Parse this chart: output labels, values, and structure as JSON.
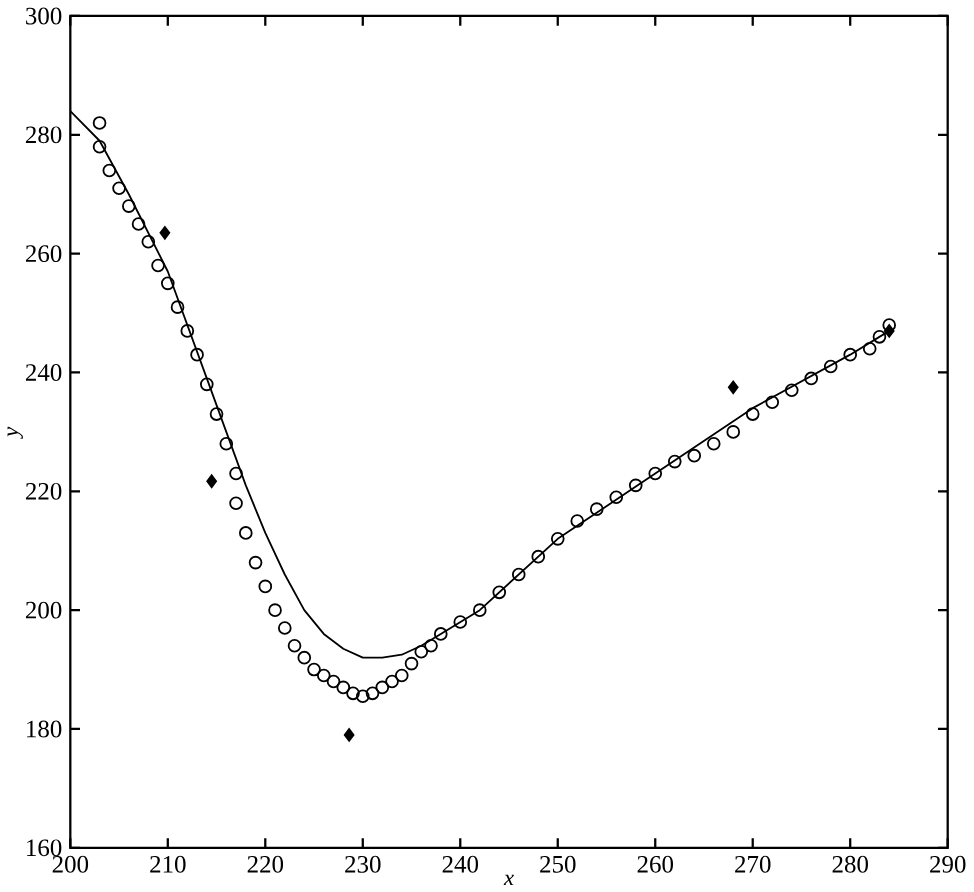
{
  "chart_data": {
    "type": "scatter",
    "xlabel": "x",
    "ylabel": "y",
    "xlim": [
      200,
      290
    ],
    "ylim": [
      160,
      300
    ],
    "xticks": [
      200,
      210,
      220,
      230,
      240,
      250,
      260,
      270,
      280,
      290
    ],
    "yticks": [
      160,
      180,
      200,
      220,
      240,
      260,
      280,
      300
    ],
    "series": [
      {
        "marker": "circle",
        "color": "#000000",
        "x": [
          203,
          203,
          204,
          205,
          206,
          207,
          208,
          209,
          210,
          211,
          212,
          213,
          214,
          215,
          216,
          217,
          217,
          218,
          219,
          220,
          221,
          222,
          223,
          224,
          225,
          226,
          227,
          228,
          229,
          230,
          231,
          232,
          233,
          234,
          235,
          236,
          237,
          238,
          240,
          242,
          244,
          246,
          248,
          250,
          252,
          254,
          256,
          258,
          260,
          262,
          264,
          266,
          268,
          270,
          272,
          274,
          276,
          278,
          280,
          282,
          283,
          284
        ],
        "values": [
          282,
          278,
          274,
          271,
          268,
          265,
          262,
          258,
          255,
          251,
          247,
          243,
          238,
          233,
          228,
          223,
          218,
          213,
          208,
          204,
          200,
          197,
          194,
          192,
          190,
          189,
          188,
          187,
          186,
          185.5,
          186,
          187,
          188,
          189,
          191,
          193,
          194,
          196,
          198,
          200,
          203,
          206,
          209,
          212,
          215,
          217,
          219,
          221,
          223,
          225,
          226,
          228,
          230,
          233,
          235,
          237,
          239,
          241,
          243,
          244,
          246,
          248
        ]
      },
      {
        "type": "line",
        "marker": "none",
        "color": "#000000",
        "x": [
          200,
          203,
          206,
          210,
          214,
          216,
          218,
          220,
          222,
          224,
          226,
          228,
          230,
          232,
          234,
          236,
          238,
          242,
          250,
          260,
          270,
          280,
          284
        ],
        "values": [
          284,
          279,
          270,
          257,
          239,
          230,
          221,
          213,
          206,
          200,
          196,
          193.5,
          192,
          192,
          192.5,
          194,
          196,
          200,
          212,
          223,
          234,
          243,
          247
        ]
      },
      {
        "marker": "diamond",
        "color": "#000000",
        "x": [
          209.7,
          214.5,
          228.6,
          268,
          284
        ],
        "values": [
          263.5,
          221.7,
          179,
          237.5,
          247
        ]
      }
    ]
  }
}
